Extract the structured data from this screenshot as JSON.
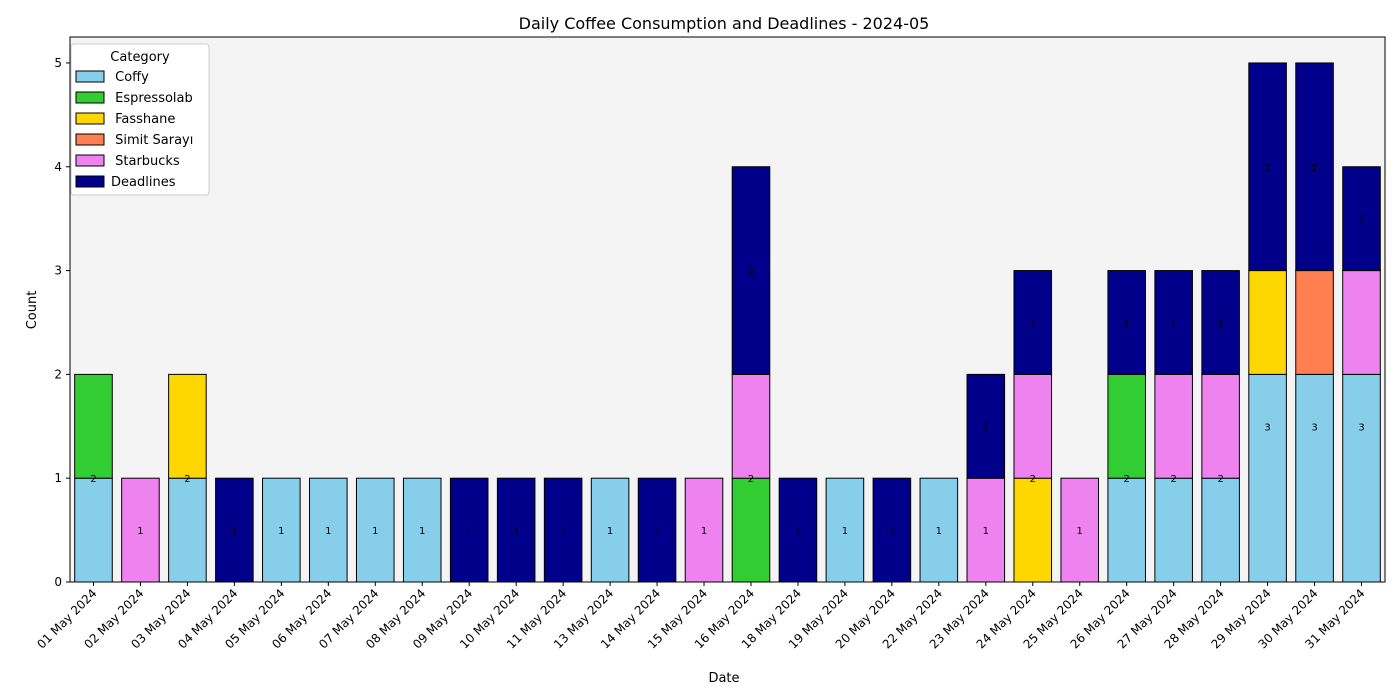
{
  "chart_data": {
    "type": "bar",
    "stacked": true,
    "title": "Daily Coffee Consumption and Deadlines - 2024-05",
    "xlabel": "Date",
    "ylabel": "Count",
    "ylim": [
      0,
      5.25
    ],
    "yticks": [
      0,
      1,
      2,
      3,
      4,
      5
    ],
    "grid": false,
    "plot_background": "#f4f4f4",
    "legend": {
      "title": "Category",
      "placement": "top-left"
    },
    "categories": [
      "01 May 2024",
      "02 May 2024",
      "03 May 2024",
      "04 May 2024",
      "05 May 2024",
      "06 May 2024",
      "07 May 2024",
      "08 May 2024",
      "09 May 2024",
      "10 May 2024",
      "11 May 2024",
      "13 May 2024",
      "14 May 2024",
      "15 May 2024",
      "16 May 2024",
      "18 May 2024",
      "19 May 2024",
      "20 May 2024",
      "22 May 2024",
      "23 May 2024",
      "24 May 2024",
      "25 May 2024",
      "26 May 2024",
      "27 May 2024",
      "28 May 2024",
      "29 May 2024",
      "30 May 2024",
      "31 May 2024"
    ],
    "series": [
      {
        "name": " Coffy",
        "color": "#87ceeb",
        "values": [
          1,
          0,
          1,
          0,
          1,
          1,
          1,
          1,
          0,
          0,
          0,
          1,
          0,
          0,
          0,
          0,
          1,
          0,
          1,
          0,
          0,
          0,
          1,
          1,
          1,
          2,
          2,
          2
        ]
      },
      {
        "name": " Espressolab",
        "color": "#32cd32",
        "values": [
          1,
          0,
          0,
          0,
          0,
          0,
          0,
          0,
          0,
          0,
          0,
          0,
          0,
          0,
          1,
          0,
          0,
          0,
          0,
          0,
          0,
          0,
          1,
          0,
          0,
          0,
          0,
          0
        ]
      },
      {
        "name": " Fasshane",
        "color": "#ffd700",
        "values": [
          0,
          0,
          1,
          0,
          0,
          0,
          0,
          0,
          0,
          0,
          0,
          0,
          0,
          0,
          0,
          0,
          0,
          0,
          0,
          0,
          1,
          0,
          0,
          0,
          0,
          1,
          0,
          0
        ]
      },
      {
        "name": " Simit Sarayı",
        "color": "#ff7f50",
        "values": [
          0,
          0,
          0,
          0,
          0,
          0,
          0,
          0,
          0,
          0,
          0,
          0,
          0,
          0,
          0,
          0,
          0,
          0,
          0,
          0,
          0,
          0,
          0,
          0,
          0,
          0,
          1,
          0
        ]
      },
      {
        "name": " Starbucks",
        "color": "#ee82ee",
        "values": [
          0,
          1,
          0,
          0,
          0,
          0,
          0,
          0,
          0,
          0,
          0,
          0,
          0,
          1,
          1,
          0,
          0,
          0,
          0,
          1,
          1,
          1,
          0,
          1,
          1,
          0,
          0,
          1
        ]
      },
      {
        "name": "Deadlines",
        "color": "#00008b",
        "values": [
          0,
          0,
          0,
          1,
          0,
          0,
          0,
          0,
          1,
          1,
          1,
          0,
          1,
          0,
          2,
          1,
          0,
          1,
          0,
          1,
          1,
          0,
          1,
          1,
          1,
          2,
          2,
          1
        ]
      }
    ],
    "bar_labels": [
      {
        "index": 0,
        "at": 1,
        "text": "2"
      },
      {
        "index": 1,
        "at": 0.5,
        "text": "1"
      },
      {
        "index": 2,
        "at": 1,
        "text": "2"
      },
      {
        "index": 3,
        "at": 0.5,
        "text": "1"
      },
      {
        "index": 4,
        "at": 0.5,
        "text": "1"
      },
      {
        "index": 5,
        "at": 0.5,
        "text": "1"
      },
      {
        "index": 6,
        "at": 0.5,
        "text": "1"
      },
      {
        "index": 7,
        "at": 0.5,
        "text": "1"
      },
      {
        "index": 8,
        "at": 0.5,
        "text": "1"
      },
      {
        "index": 9,
        "at": 0.5,
        "text": "1"
      },
      {
        "index": 10,
        "at": 0.5,
        "text": "1"
      },
      {
        "index": 11,
        "at": 0.5,
        "text": "1"
      },
      {
        "index": 12,
        "at": 0.5,
        "text": "1"
      },
      {
        "index": 13,
        "at": 0.5,
        "text": "1"
      },
      {
        "index": 14,
        "at": 1,
        "text": "2"
      },
      {
        "index": 14,
        "at": 3,
        "text": "2"
      },
      {
        "index": 15,
        "at": 0.5,
        "text": "1"
      },
      {
        "index": 16,
        "at": 0.5,
        "text": "1"
      },
      {
        "index": 17,
        "at": 0.5,
        "text": "1"
      },
      {
        "index": 18,
        "at": 0.5,
        "text": "1"
      },
      {
        "index": 19,
        "at": 0.5,
        "text": "1"
      },
      {
        "index": 19,
        "at": 1.5,
        "text": "1"
      },
      {
        "index": 20,
        "at": 1,
        "text": "2"
      },
      {
        "index": 20,
        "at": 2.5,
        "text": "1"
      },
      {
        "index": 21,
        "at": 0.5,
        "text": "1"
      },
      {
        "index": 22,
        "at": 1,
        "text": "2"
      },
      {
        "index": 22,
        "at": 2.5,
        "text": "1"
      },
      {
        "index": 23,
        "at": 1,
        "text": "2"
      },
      {
        "index": 23,
        "at": 2.5,
        "text": "1"
      },
      {
        "index": 24,
        "at": 1,
        "text": "2"
      },
      {
        "index": 24,
        "at": 2.5,
        "text": "1"
      },
      {
        "index": 25,
        "at": 1.5,
        "text": "3"
      },
      {
        "index": 25,
        "at": 4,
        "text": "2"
      },
      {
        "index": 26,
        "at": 1.5,
        "text": "3"
      },
      {
        "index": 26,
        "at": 4,
        "text": "2"
      },
      {
        "index": 27,
        "at": 1.5,
        "text": "3"
      },
      {
        "index": 27,
        "at": 3.5,
        "text": "1"
      }
    ]
  }
}
